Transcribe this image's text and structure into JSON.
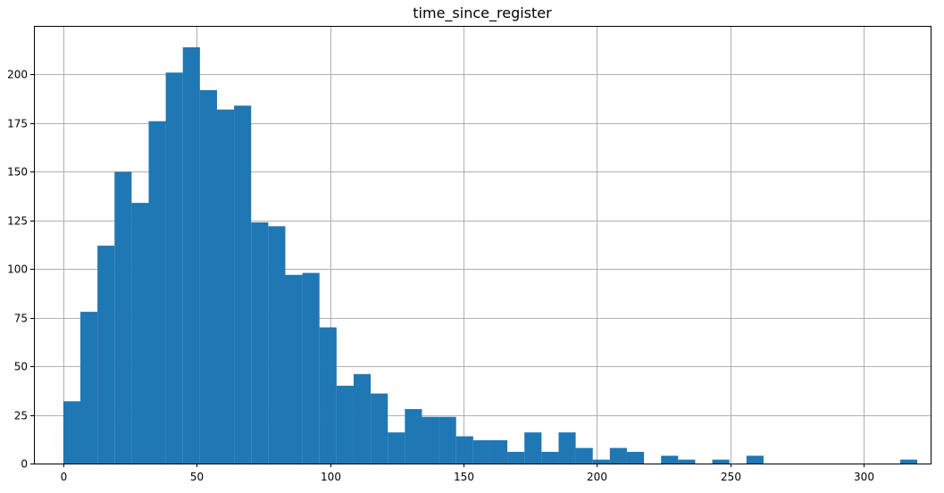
{
  "chart_data": {
    "type": "bar",
    "title": "time_since_register",
    "xlabel": "",
    "ylabel": "",
    "xlim": [
      -11,
      325
    ],
    "ylim": [
      0,
      225
    ],
    "grid": true,
    "bar_color": "#1f77b4",
    "xticks": [
      0,
      50,
      100,
      150,
      200,
      250,
      300
    ],
    "xtick_labels": [
      "0",
      "50",
      "100",
      "150",
      "200",
      "250",
      "300"
    ],
    "yticks": [
      0,
      25,
      50,
      75,
      100,
      125,
      150,
      175,
      200
    ],
    "ytick_labels": [
      "0",
      "25",
      "50",
      "75",
      "100",
      "125",
      "150",
      "175",
      "200"
    ],
    "bin_edges": [
      0,
      6.4,
      12.8,
      19.2,
      25.6,
      32,
      38.4,
      44.8,
      51.2,
      57.6,
      64,
      70.4,
      76.8,
      83.2,
      89.6,
      96,
      102.4,
      108.8,
      115.2,
      121.6,
      128,
      134.4,
      140.8,
      147.2,
      153.6,
      160,
      166.4,
      172.8,
      179.2,
      185.6,
      192,
      198.4,
      204.8,
      211.2,
      217.6,
      224,
      230.4,
      236.8,
      243.2,
      249.6,
      256,
      262.4,
      268.8,
      275.2,
      281.6,
      288,
      294.4,
      300.8,
      307.2,
      313.6,
      320
    ],
    "counts": [
      32,
      78,
      112,
      150,
      134,
      176,
      201,
      214,
      192,
      182,
      184,
      124,
      122,
      97,
      98,
      70,
      40,
      46,
      36,
      16,
      28,
      24,
      24,
      14,
      12,
      12,
      6,
      16,
      6,
      16,
      8,
      2,
      8,
      6,
      0,
      4,
      2,
      0,
      2,
      0,
      4,
      0,
      0,
      0,
      0,
      0,
      0,
      0,
      0,
      2
    ]
  }
}
